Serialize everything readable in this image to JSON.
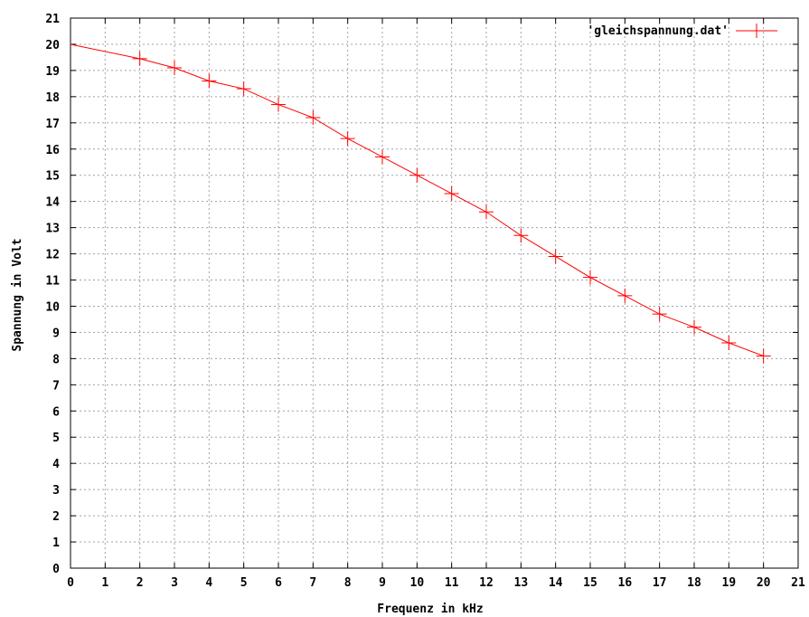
{
  "chart_data": {
    "type": "line",
    "title": "",
    "xlabel": "Frequenz in kHz",
    "ylabel": "Spannung in Volt",
    "xlim": [
      0,
      21
    ],
    "ylim": [
      0,
      21
    ],
    "x_ticks": [
      "0",
      "1",
      "2",
      "3",
      "4",
      "5",
      "6",
      "7",
      "8",
      "9",
      "10",
      "11",
      "12",
      "13",
      "14",
      "15",
      "16",
      "17",
      "18",
      "19",
      "20",
      "21"
    ],
    "y_ticks": [
      "0",
      "1",
      "2",
      "3",
      "4",
      "5",
      "6",
      "7",
      "8",
      "9",
      "10",
      "11",
      "12",
      "13",
      "14",
      "15",
      "16",
      "17",
      "18",
      "19",
      "20",
      "21"
    ],
    "grid": true,
    "legend_position": "top-right",
    "series": [
      {
        "name": "'gleichspannung.dat'",
        "color": "#ff0000",
        "marker": "plus",
        "x": [
          0,
          2,
          3,
          4,
          5,
          6,
          7,
          8,
          9,
          10,
          11,
          12,
          13,
          14,
          15,
          16,
          17,
          18,
          19,
          20
        ],
        "y": [
          20.0,
          19.45,
          19.1,
          18.6,
          18.3,
          17.7,
          17.2,
          16.4,
          15.7,
          15.0,
          14.3,
          13.6,
          12.7,
          11.9,
          11.1,
          10.4,
          9.7,
          9.2,
          8.6,
          8.1
        ]
      }
    ]
  }
}
